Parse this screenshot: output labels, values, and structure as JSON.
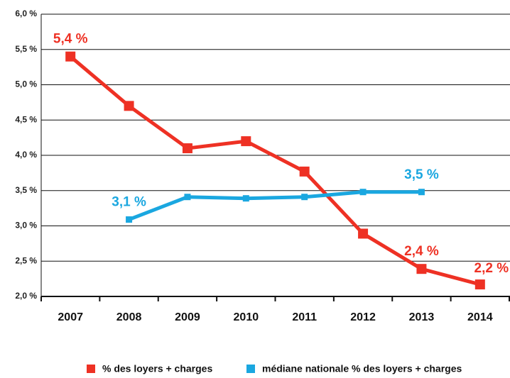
{
  "chart_data": {
    "type": "line",
    "categories": [
      "2007",
      "2008",
      "2009",
      "2010",
      "2011",
      "2012",
      "2013",
      "2014"
    ],
    "series": [
      {
        "name": "% des loyers + charges",
        "color": "#ee3124",
        "values": [
          5.4,
          4.7,
          4.1,
          4.2,
          3.77,
          2.89,
          2.39,
          2.17
        ],
        "value_labels": [
          "5,4 %",
          null,
          null,
          null,
          null,
          null,
          "2,4 %",
          "2,2 %"
        ]
      },
      {
        "name": "médiane nationale % des loyers + charges",
        "color": "#1aa7e0",
        "values": [
          null,
          3.09,
          3.41,
          3.39,
          3.41,
          3.48,
          3.48,
          null
        ],
        "value_labels": [
          null,
          "3,1 %",
          null,
          null,
          null,
          null,
          "3,5 %",
          null
        ]
      }
    ],
    "ylim": [
      2.0,
      6.0
    ],
    "yticks": [
      {
        "value": 2.0,
        "label": "2,0 %"
      },
      {
        "value": 2.5,
        "label": "2,5 %"
      },
      {
        "value": 3.0,
        "label": "3,0 %"
      },
      {
        "value": 3.5,
        "label": "3,5 %"
      },
      {
        "value": 4.0,
        "label": "4,0 %"
      },
      {
        "value": 4.5,
        "label": "4,5 %"
      },
      {
        "value": 5.0,
        "label": "5,0 %"
      },
      {
        "value": 5.5,
        "label": "5,5 %"
      },
      {
        "value": 6.0,
        "label": "6,0 %"
      }
    ],
    "grid": true,
    "legend": "bottom"
  }
}
